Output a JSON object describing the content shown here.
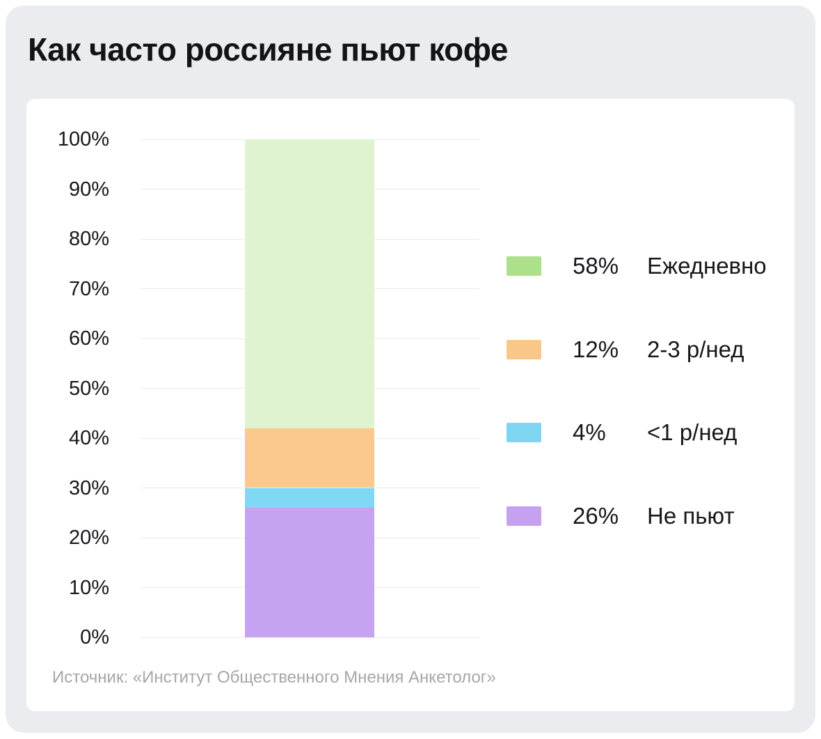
{
  "title": "Как часто россияне пьют кофе",
  "source": "Источник: «Институт Общественного Мнения Анкетолог»",
  "colors": {
    "page_background": "#FFFFFF",
    "canvas_background": "#EBECF0",
    "card_background": "#FFFFFF",
    "gridline": "#EAEAEA",
    "title_text": "#141418",
    "axis_text": "#17171B",
    "legend_text": "#17171B",
    "source_text": "#A6A6AB"
  },
  "chart_data": {
    "type": "bar",
    "stacked": true,
    "title": "Как часто россияне пьют кофе",
    "xlabel": "",
    "ylabel": "",
    "ylim": [
      0,
      100
    ],
    "yticks": [
      "0%",
      "10%",
      "20%",
      "30%",
      "40%",
      "50%",
      "60%",
      "70%",
      "80%",
      "90%",
      "100%"
    ],
    "grid": true,
    "legend_position": "right",
    "series": [
      {
        "name": "Ежедневно",
        "value": 58,
        "pct_label": "58%",
        "bar_color": "#E0F3D0",
        "legend_color": "#ADE08B"
      },
      {
        "name": "2-3 р/нед",
        "value": 12,
        "pct_label": "12%",
        "bar_color": "#FBC98B",
        "legend_color": "#FAC788"
      },
      {
        "name": "<1 р/нед",
        "value": 4,
        "pct_label": "4%",
        "bar_color": "#7FD9F4",
        "legend_color": "#7ED6F2"
      },
      {
        "name": "Не пьют",
        "value": 26,
        "pct_label": "26%",
        "bar_color": "#C6A3F1",
        "legend_color": "#C5A1F0"
      }
    ]
  }
}
